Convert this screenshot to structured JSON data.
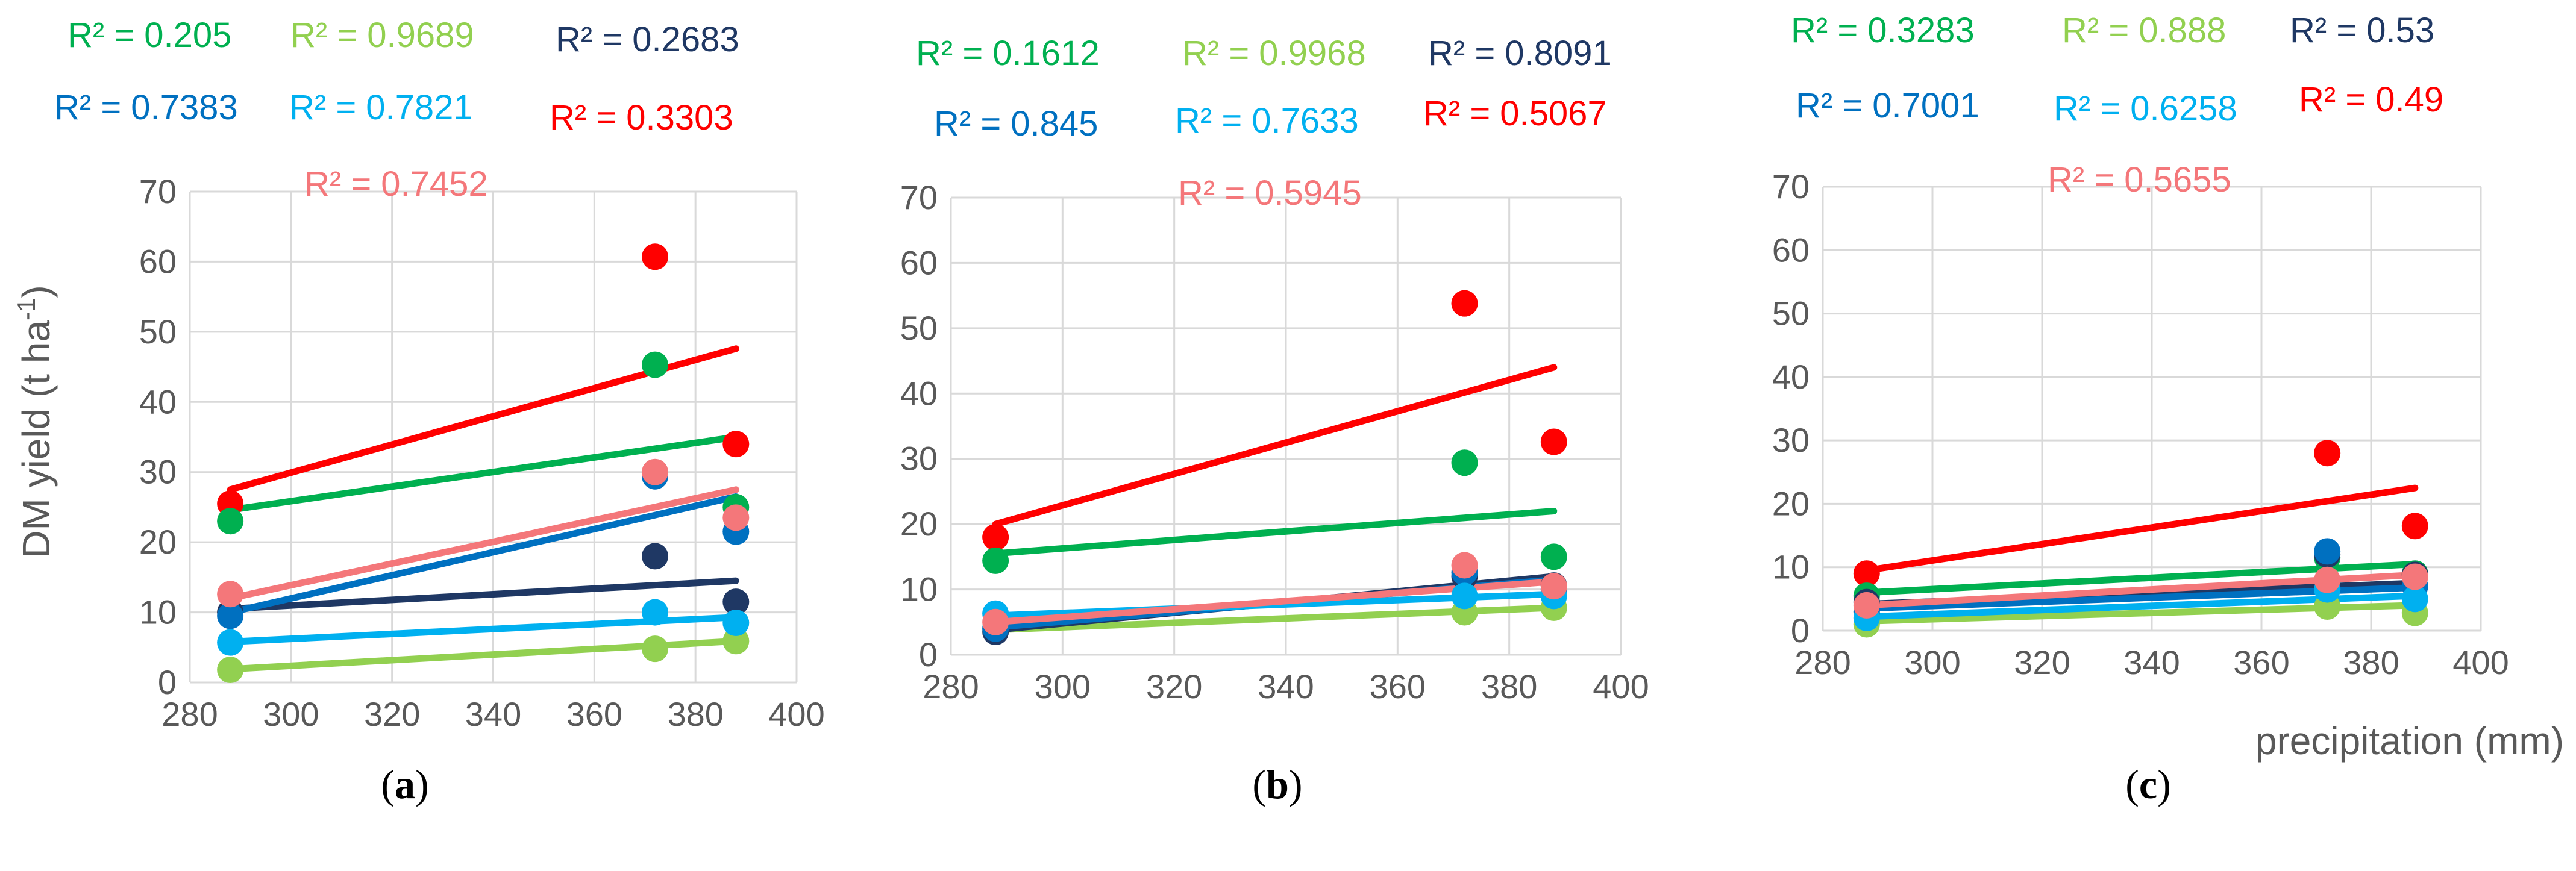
{
  "figure": {
    "y_axis_label": "DM yield (t ha",
    "y_axis_label_sup": "-1",
    "y_axis_label_end": ")",
    "x_axis_label": "precipitation (mm)"
  },
  "chart_data": [
    {
      "type": "scatter",
      "panel_label": "a",
      "xlim": [
        280,
        400
      ],
      "ylim": [
        0,
        70
      ],
      "xticks": [
        280,
        300,
        320,
        340,
        360,
        380,
        400
      ],
      "yticks": [
        0,
        10,
        20,
        30,
        40,
        50,
        60,
        70
      ],
      "grid": true,
      "series": [
        {
          "name": "red",
          "color": "#ff0000",
          "x": [
            288,
            372,
            388
          ],
          "y": [
            25.5,
            60.7,
            34.0
          ],
          "trend": [
            27.5,
            47.6
          ],
          "r2": "R² = 0.3303"
        },
        {
          "name": "green",
          "color": "#00b050",
          "x": [
            288,
            372,
            388
          ],
          "y": [
            23.0,
            45.3,
            25.0
          ],
          "trend": [
            24.6,
            35.0
          ],
          "r2": "R² = 0.205"
        },
        {
          "name": "light-green",
          "color": "#92d050",
          "x": [
            288,
            372,
            388
          ],
          "y": [
            1.8,
            4.8,
            5.9
          ],
          "trend": [
            1.9,
            5.9
          ],
          "r2": "R² = 0.9689"
        },
        {
          "name": "dark-navy",
          "color": "#1f3864",
          "x": [
            288,
            372,
            388
          ],
          "y": [
            10.0,
            18.0,
            11.5
          ],
          "trend": [
            10.5,
            14.5
          ],
          "r2": "R² = 0.2683"
        },
        {
          "name": "blue",
          "color": "#0070c0",
          "x": [
            288,
            372,
            388
          ],
          "y": [
            9.5,
            29.4,
            21.5
          ],
          "trend": [
            10.0,
            26.5
          ],
          "r2": "R² = 0.7383"
        },
        {
          "name": "light-blue",
          "color": "#00b0f0",
          "x": [
            288,
            372,
            388
          ],
          "y": [
            5.7,
            10.0,
            8.5
          ],
          "trend": [
            5.8,
            9.3
          ],
          "r2": "R² = 0.7821"
        },
        {
          "name": "salmon",
          "color": "#f4777a",
          "x": [
            288,
            372,
            388
          ],
          "y": [
            12.6,
            30.0,
            23.5
          ],
          "trend": [
            12.0,
            27.5
          ],
          "r2": "R² = 0.7452"
        }
      ]
    },
    {
      "type": "scatter",
      "panel_label": "b",
      "xlim": [
        280,
        400
      ],
      "ylim": [
        0,
        70
      ],
      "xticks": [
        280,
        300,
        320,
        340,
        360,
        380,
        400
      ],
      "yticks": [
        0,
        10,
        20,
        30,
        40,
        50,
        60,
        70
      ],
      "grid": true,
      "series": [
        {
          "name": "red",
          "color": "#ff0000",
          "x": [
            288,
            372,
            388
          ],
          "y": [
            18.0,
            53.8,
            32.6
          ],
          "trend": [
            20.0,
            44.0
          ],
          "r2": "R² = 0.5067"
        },
        {
          "name": "green",
          "color": "#00b050",
          "x": [
            288,
            372,
            388
          ],
          "y": [
            14.4,
            29.4,
            15.0
          ],
          "trend": [
            15.5,
            22.0
          ],
          "r2": "R² = 0.1612"
        },
        {
          "name": "light-green",
          "color": "#92d050",
          "x": [
            288,
            372,
            388
          ],
          "y": [
            4.0,
            6.5,
            7.2
          ],
          "trend": [
            3.8,
            7.2
          ],
          "r2": "R² = 0.9968"
        },
        {
          "name": "dark-navy",
          "color": "#1f3864",
          "x": [
            288,
            372,
            388
          ],
          "y": [
            3.5,
            12.0,
            10.6
          ],
          "trend": [
            3.8,
            12.0
          ],
          "r2": "R² = 0.8091"
        },
        {
          "name": "blue",
          "color": "#0070c0",
          "x": [
            288,
            372,
            388
          ],
          "y": [
            4.0,
            12.6,
            10.0
          ],
          "trend": [
            4.2,
            11.5
          ],
          "r2": "R² = 0.845"
        },
        {
          "name": "light-blue",
          "color": "#00b0f0",
          "x": [
            288,
            372,
            388
          ],
          "y": [
            6.3,
            9.0,
            9.0
          ],
          "trend": [
            6.0,
            9.3
          ],
          "r2": "R² = 0.7633"
        },
        {
          "name": "salmon",
          "color": "#f4777a",
          "x": [
            288,
            372,
            388
          ],
          "y": [
            5.0,
            13.7,
            10.5
          ],
          "trend": [
            5.0,
            11.2
          ],
          "r2": "R² = 0.5945"
        }
      ]
    },
    {
      "type": "scatter",
      "panel_label": "c",
      "xlim": [
        280,
        400
      ],
      "ylim": [
        0,
        70
      ],
      "xticks": [
        280,
        300,
        320,
        340,
        360,
        380,
        400
      ],
      "yticks": [
        0,
        10,
        20,
        30,
        40,
        50,
        60,
        70
      ],
      "grid": true,
      "series": [
        {
          "name": "red",
          "color": "#ff0000",
          "x": [
            288,
            372,
            388
          ],
          "y": [
            9.0,
            28.0,
            16.5
          ],
          "trend": [
            9.5,
            22.5
          ],
          "r2": "R² = 0.49"
        },
        {
          "name": "green",
          "color": "#00b050",
          "x": [
            288,
            372,
            388
          ],
          "y": [
            5.5,
            11.5,
            9.0
          ],
          "trend": [
            6.0,
            10.5
          ],
          "r2": "R² = 0.3283"
        },
        {
          "name": "light-green",
          "color": "#92d050",
          "x": [
            288,
            372,
            388
          ],
          "y": [
            1.0,
            3.8,
            2.8
          ],
          "trend": [
            1.5,
            4.0
          ],
          "r2": "R² = 0.888"
        },
        {
          "name": "dark-navy",
          "color": "#1f3864",
          "x": [
            288,
            372,
            388
          ],
          "y": [
            4.5,
            12.0,
            8.8
          ],
          "trend": [
            4.2,
            7.5
          ],
          "r2": "R² = 0.53"
        },
        {
          "name": "blue",
          "color": "#0070c0",
          "x": [
            288,
            372,
            388
          ],
          "y": [
            3.0,
            12.5,
            7.0
          ],
          "trend": [
            3.5,
            6.8
          ],
          "r2": "R² = 0.7001"
        },
        {
          "name": "light-blue",
          "color": "#00b0f0",
          "x": [
            288,
            372,
            388
          ],
          "y": [
            2.0,
            6.5,
            5.0
          ],
          "trend": [
            2.2,
            5.5
          ],
          "r2": "R² = 0.6258"
        },
        {
          "name": "salmon",
          "color": "#f4777a",
          "x": [
            288,
            372,
            388
          ],
          "y": [
            4.0,
            8.0,
            8.5
          ],
          "trend": [
            4.0,
            8.8
          ],
          "r2": "R² = 0.5655"
        }
      ]
    }
  ]
}
